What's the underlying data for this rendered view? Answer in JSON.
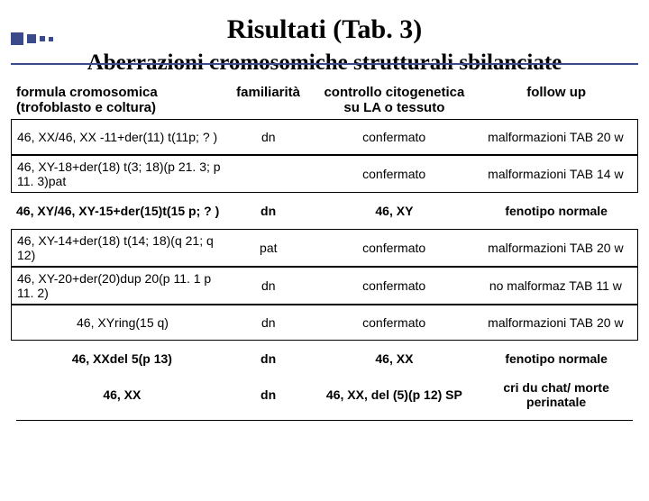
{
  "title": "Risultati (Tab. 3)",
  "subtitle": "Aberrazioni cromosomiche strutturali sbilanciate",
  "headers": {
    "col1a": "formula cromosomica",
    "col1b": "(trofoblasto e coltura)",
    "col2": "familiarità",
    "col3a": "controllo citogenetica",
    "col3b": "su LA o tessuto",
    "col4": "follow up"
  },
  "rows": [
    {
      "c1": "46, XX/46, XX -11+der(11) t(11p; ? )",
      "c2": "dn",
      "c3": "confermato",
      "c4": "malformazioni TAB 20 w",
      "bordered": true,
      "center_c1": false,
      "bold": false
    },
    {
      "c1": "46, XY-18+der(18) t(3; 18)(p 21. 3; p 11. 3)pat",
      "c2": "",
      "c3": "confermato",
      "c4": "malformazioni TAB 14 w",
      "bordered": true,
      "center_c1": false,
      "bold": false
    },
    {
      "c1": "46, XY/46, XY-15+der(15)t(15 p; ? )",
      "c2": "dn",
      "c3": "46, XY",
      "c4": "fenotipo normale",
      "bordered": false,
      "center_c1": false,
      "bold": true
    },
    {
      "c1": "46, XY-14+der(18) t(14; 18)(q 21; q 12)",
      "c2": "pat",
      "c3": "confermato",
      "c4": "malformazioni TAB 20 w",
      "bordered": true,
      "center_c1": false,
      "bold": false
    },
    {
      "c1": "46, XY-20+der(20)dup 20(p 11. 1 p 11. 2)",
      "c2": "dn",
      "c3": "confermato",
      "c4": "no malformaz TAB 11 w",
      "bordered": true,
      "center_c1": false,
      "bold": false
    },
    {
      "c1": "46, XYring(15 q)",
      "c2": "dn",
      "c3": "confermato",
      "c4": "malformazioni TAB 20 w",
      "bordered": true,
      "center_c1": true,
      "bold": false
    },
    {
      "c1": "46, XXdel 5(p 13)",
      "c2": "dn",
      "c3": "46, XX",
      "c4": "fenotipo normale",
      "bordered": false,
      "center_c1": true,
      "bold": true
    },
    {
      "c1": "46, XX",
      "c2": "dn",
      "c3": "46, XX, del (5)(p 12) SP",
      "c4": "cri du chat/ morte perinatale",
      "bordered": false,
      "center_c1": true,
      "bold": true
    }
  ]
}
